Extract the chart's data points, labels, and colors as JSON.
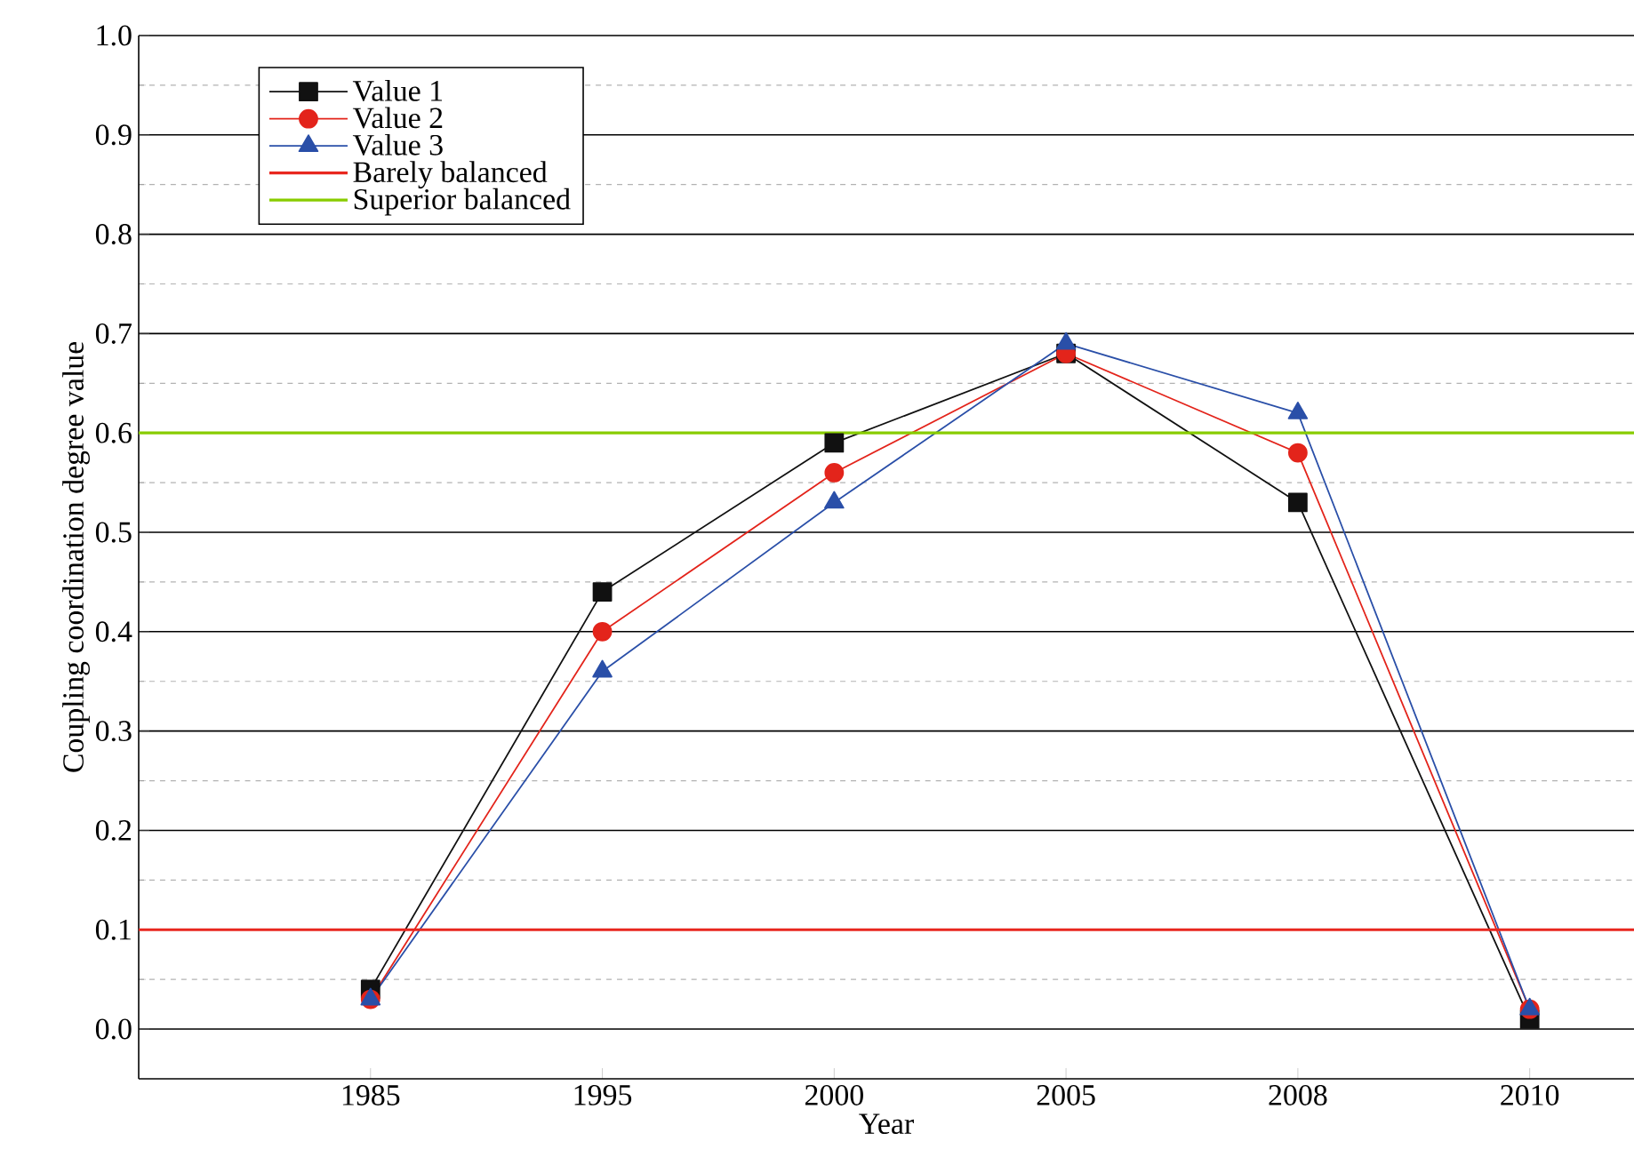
{
  "chart_data": {
    "type": "line",
    "xlabel": "Year",
    "ylabel": "Coupling coordination degree value",
    "categories": [
      "1985",
      "1995",
      "2000",
      "2005",
      "2008",
      "2010"
    ],
    "series": [
      {
        "name": "Value 1",
        "color": "#111111",
        "marker": "square",
        "values": [
          0.04,
          0.44,
          0.59,
          0.68,
          0.53,
          0.01
        ]
      },
      {
        "name": "Value 2",
        "color": "#e3241b",
        "marker": "circle",
        "values": [
          0.03,
          0.4,
          0.56,
          0.68,
          0.58,
          0.02
        ]
      },
      {
        "name": "Value 3",
        "color": "#2a4fa8",
        "marker": "triangle",
        "values": [
          0.03,
          0.36,
          0.53,
          0.69,
          0.62,
          0.02
        ]
      }
    ],
    "ylim": [
      -0.05,
      1.0
    ],
    "yticks": [
      {
        "value": 0,
        "label": "0.0"
      },
      {
        "value": 0.05,
        "label": null
      },
      {
        "value": 0.1,
        "label": "0.1"
      },
      {
        "value": 0.15,
        "label": null
      },
      {
        "value": 0.2,
        "label": "0.2"
      },
      {
        "value": 0.25,
        "label": null
      },
      {
        "value": 0.3,
        "label": "0.3"
      },
      {
        "value": 0.35,
        "label": null
      },
      {
        "value": 0.4,
        "label": "0.4"
      },
      {
        "value": 0.45,
        "label": null
      },
      {
        "value": 0.5,
        "label": "0.5"
      },
      {
        "value": 0.55,
        "label": null
      },
      {
        "value": 0.6,
        "label": "0.6"
      },
      {
        "value": 0.65,
        "label": null
      },
      {
        "value": 0.7,
        "label": "0.7"
      },
      {
        "value": 0.75,
        "label": null
      },
      {
        "value": 0.8,
        "label": "0.8"
      },
      {
        "value": 0.85,
        "label": null
      },
      {
        "value": 0.9,
        "label": "0.9"
      },
      {
        "value": 0.95,
        "label": null
      },
      {
        "value": 1.0,
        "label": "1.0"
      }
    ],
    "ref_lines": [
      {
        "axis": "y",
        "value": 0.1,
        "label": "Barely balanced",
        "color": "#e8271f"
      },
      {
        "axis": "y",
        "value": 0.6,
        "label": "Superior balanced",
        "color": "#88cc00"
      }
    ],
    "grid": "y",
    "legend": "top left",
    "line_style": "solid"
  }
}
